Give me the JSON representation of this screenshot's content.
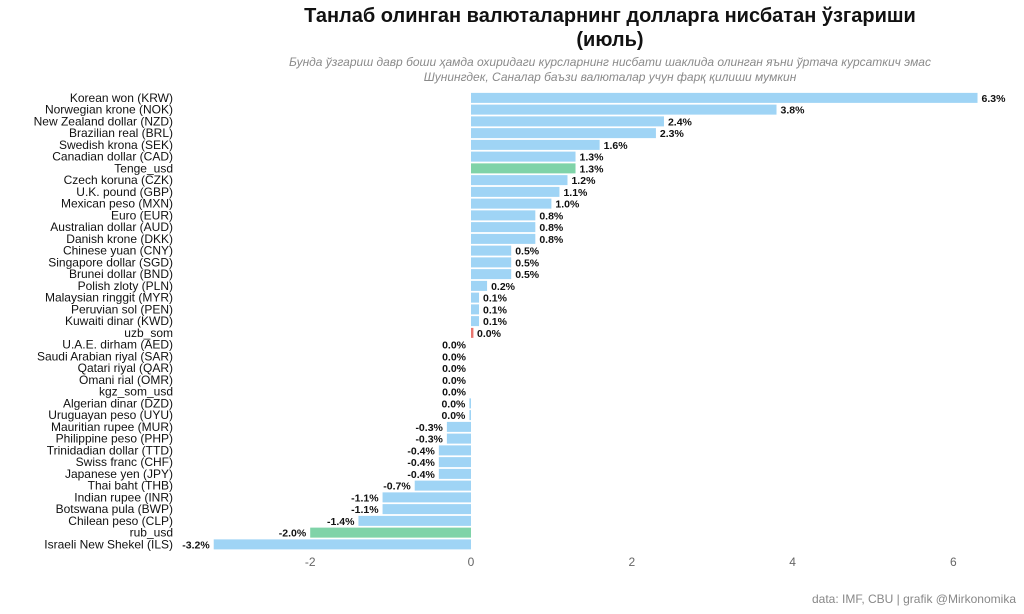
{
  "title_line1": "Танлаб олинган валюталарнинг  долларга нисбатан ўзгариши",
  "title_line2": "(июль)",
  "subtitle_line1": "Бунда ўзгариш давр боши ҳамда охиридаги  курсларнинг нисбати шаклида олинган яъни ўртача курсаткич эмас",
  "subtitle_line2": "Шунингдек, Саналар  баъзи валюталар учун  фарқ қилиши мумкин",
  "caption": "data: IMF, CBU | grafik @Mirkonomika",
  "colors": {
    "default": "#9fd4f5",
    "highlight": "#7fd3a8",
    "uzb": "#e8756f",
    "text": "#111111",
    "tick": "#666666"
  },
  "chart_data": {
    "type": "bar",
    "orientation": "horizontal",
    "xlim": [
      -3.2,
      6.3
    ],
    "xticks": [
      -2,
      0,
      2,
      4,
      6
    ],
    "grid": false,
    "categories": [
      "Korean won (KRW)",
      "Norwegian krone (NOK)",
      "New Zealand dollar (NZD)",
      "Brazilian real (BRL)",
      "Swedish krona (SEK)",
      "Canadian dollar (CAD)",
      "Tenge_usd",
      "Czech koruna (CZK)",
      "U.K. pound (GBP)",
      "Mexican peso (MXN)",
      "Euro (EUR)",
      "Australian dollar (AUD)",
      "Danish krone (DKK)",
      "Chinese yuan (CNY)",
      "Singapore dollar (SGD)",
      "Brunei dollar (BND)",
      "Polish zloty (PLN)",
      "Malaysian ringgit (MYR)",
      "Peruvian sol (PEN)",
      "Kuwaiti dinar (KWD)",
      "uzb_som",
      "U.A.E. dirham (AED)",
      "Saudi Arabian riyal (SAR)",
      "Qatari riyal (QAR)",
      "Omani rial (OMR)",
      "kgz_som_usd",
      "Algerian dinar (DZD)",
      "Uruguayan peso (UYU)",
      "Mauritian rupee (MUR)",
      "Philippine peso (PHP)",
      "Trinidadian dollar (TTD)",
      "Swiss franc (CHF)",
      "Japanese yen (JPY)",
      "Thai baht (THB)",
      "Indian rupee (INR)",
      "Botswana pula (BWP)",
      "Chilean peso (CLP)",
      "rub_usd",
      "Israeli New Shekel (ILS)"
    ],
    "values": [
      6.3,
      3.8,
      2.4,
      2.3,
      1.6,
      1.3,
      1.3,
      1.2,
      1.1,
      1.0,
      0.8,
      0.8,
      0.8,
      0.5,
      0.5,
      0.5,
      0.2,
      0.1,
      0.1,
      0.1,
      0.03,
      0.0,
      0.0,
      0.0,
      0.0,
      0.0,
      -0.02,
      -0.02,
      -0.3,
      -0.3,
      -0.4,
      -0.4,
      -0.4,
      -0.7,
      -1.1,
      -1.1,
      -1.4,
      -2.0,
      -3.2
    ],
    "labels": [
      "6.3%",
      "3.8%",
      "2.4%",
      "2.3%",
      "1.6%",
      "1.3%",
      "1.3%",
      "1.2%",
      "1.1%",
      "1.0%",
      "0.8%",
      "0.8%",
      "0.8%",
      "0.5%",
      "0.5%",
      "0.5%",
      "0.2%",
      "0.1%",
      "0.1%",
      "0.1%",
      "0.0%",
      "0.0%",
      "0.0%",
      "0.0%",
      "0.0%",
      "0.0%",
      "0.0%",
      "0.0%",
      "-0.3%",
      "-0.3%",
      "-0.4%",
      "-0.4%",
      "-0.4%",
      "-0.7%",
      "-1.1%",
      "-1.1%",
      "-1.4%",
      "-2.0%",
      "-3.2%"
    ],
    "highlighted": [
      "Tenge_usd",
      "rub_usd"
    ],
    "red": [
      "uzb_som"
    ]
  }
}
